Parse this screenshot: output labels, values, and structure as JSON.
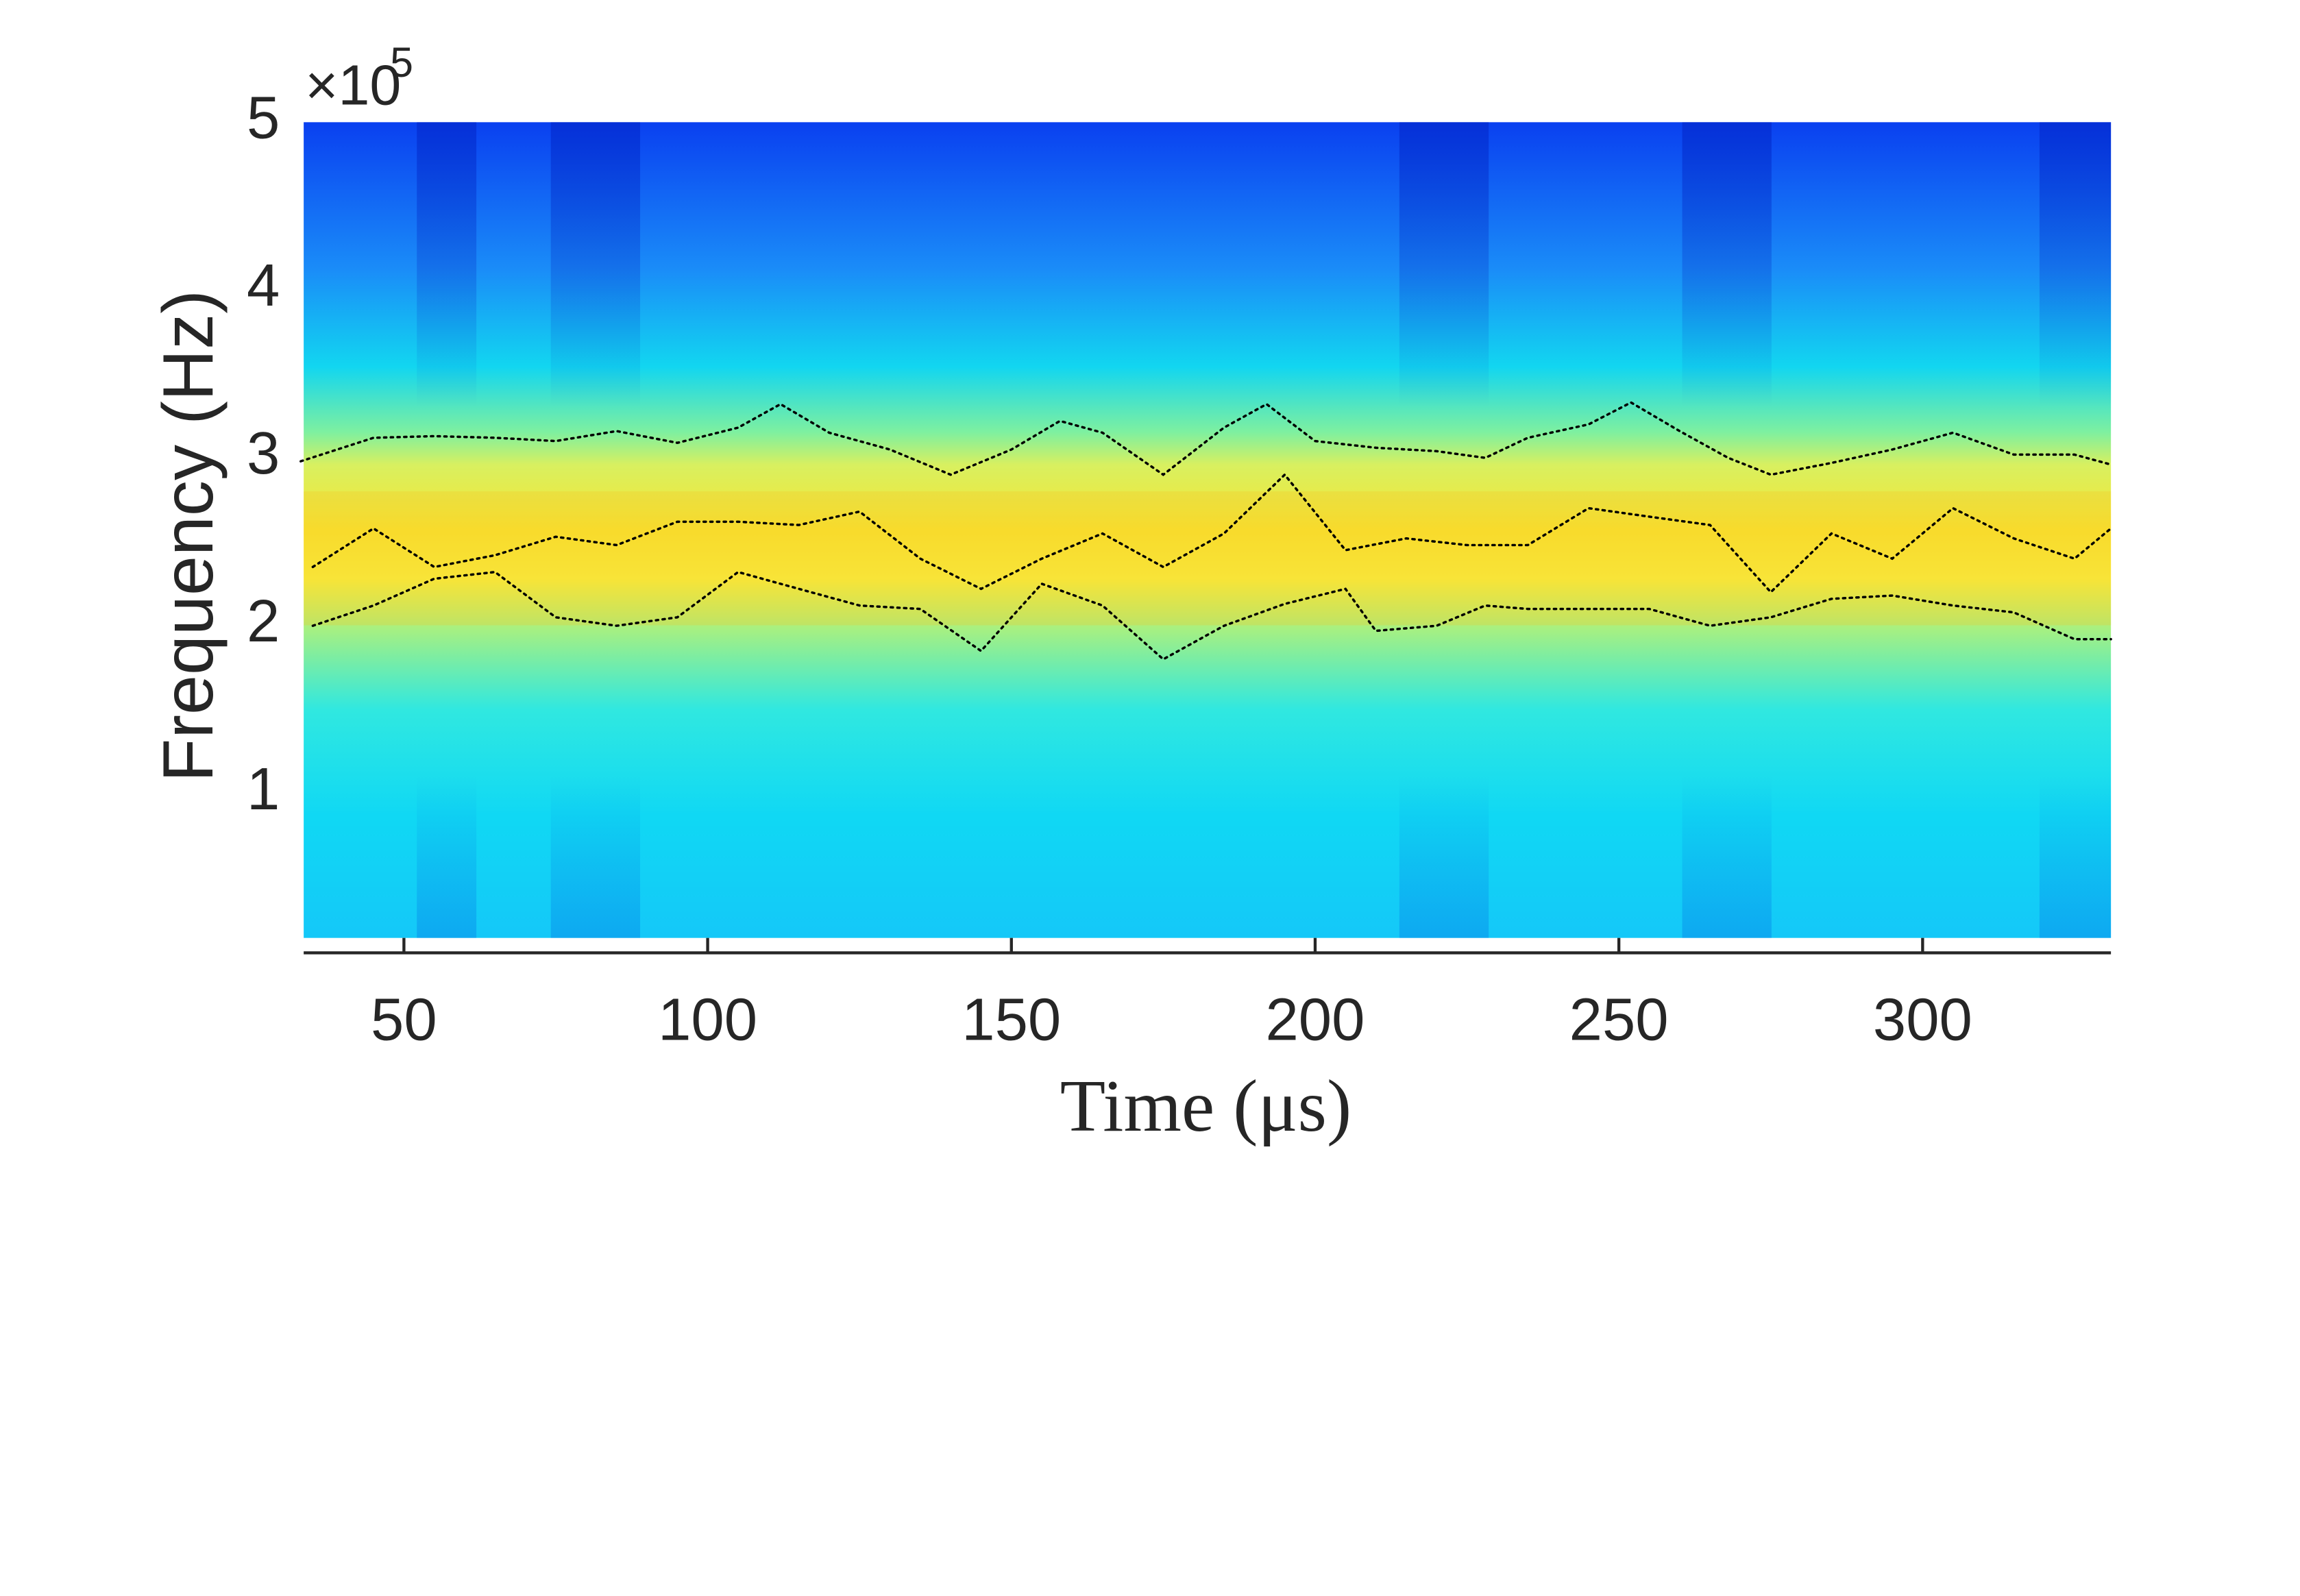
{
  "chart_data": {
    "type": "line",
    "xlabel": "Time (μs)",
    "ylabel": "Frequency (Hz)",
    "y_multiplier": "×10",
    "y_multiplier_exponent": "5",
    "xlim": [
      33.5,
      331
    ],
    "xticks": [
      50,
      100,
      150,
      200,
      250,
      300
    ],
    "ylim": [
      14000,
      500000
    ],
    "yticks": [
      {
        "value": 100000,
        "label": "1"
      },
      {
        "value": 200000,
        "label": "2"
      },
      {
        "value": 300000,
        "label": "3"
      },
      {
        "value": 400000,
        "label": "4"
      },
      {
        "value": 500000,
        "label": "5"
      }
    ],
    "series": [
      {
        "color": "#000000",
        "x": [
          33,
          45,
          55,
          65,
          75,
          85,
          95,
          105,
          112,
          120,
          130,
          140,
          150,
          158,
          165,
          175,
          185,
          192,
          200,
          210,
          220,
          228,
          235,
          245,
          252,
          260,
          268,
          275,
          285,
          295,
          305,
          315,
          325,
          331
        ],
        "values": [
          298000,
          312000,
          313000,
          312000,
          310000,
          316000,
          309000,
          318000,
          332000,
          315000,
          305000,
          290000,
          305000,
          322000,
          315000,
          290000,
          318000,
          332000,
          310000,
          306000,
          304000,
          300000,
          312000,
          320000,
          333000,
          316000,
          300000,
          290000,
          297000,
          305000,
          315000,
          302000,
          302000,
          296000
        ]
      },
      {
        "color": "#000000",
        "x": [
          35,
          45,
          55,
          65,
          75,
          85,
          95,
          105,
          115,
          125,
          135,
          145,
          155,
          165,
          175,
          185,
          195,
          205,
          215,
          225,
          235,
          245,
          255,
          265,
          275,
          285,
          295,
          305,
          315,
          325,
          331
        ],
        "values": [
          235000,
          258000,
          235000,
          242000,
          253000,
          248000,
          262000,
          262000,
          260000,
          268000,
          240000,
          222000,
          240000,
          255000,
          235000,
          255000,
          290000,
          245000,
          252000,
          248000,
          248000,
          270000,
          265000,
          260000,
          220000,
          255000,
          240000,
          270000,
          252000,
          240000,
          258000
        ]
      },
      {
        "color": "#000000",
        "x": [
          35,
          45,
          55,
          65,
          75,
          85,
          95,
          105,
          115,
          125,
          135,
          145,
          155,
          165,
          175,
          185,
          195,
          205,
          210,
          220,
          228,
          235,
          245,
          255,
          265,
          275,
          285,
          295,
          305,
          315,
          325,
          331
        ],
        "values": [
          200000,
          212000,
          228000,
          232000,
          205000,
          200000,
          205000,
          232000,
          222000,
          212000,
          210000,
          185000,
          225000,
          212000,
          180000,
          200000,
          213000,
          222000,
          197000,
          200000,
          212000,
          210000,
          210000,
          210000,
          200000,
          205000,
          216000,
          218000,
          212000,
          208000,
          192000,
          192000
        ]
      }
    ]
  }
}
